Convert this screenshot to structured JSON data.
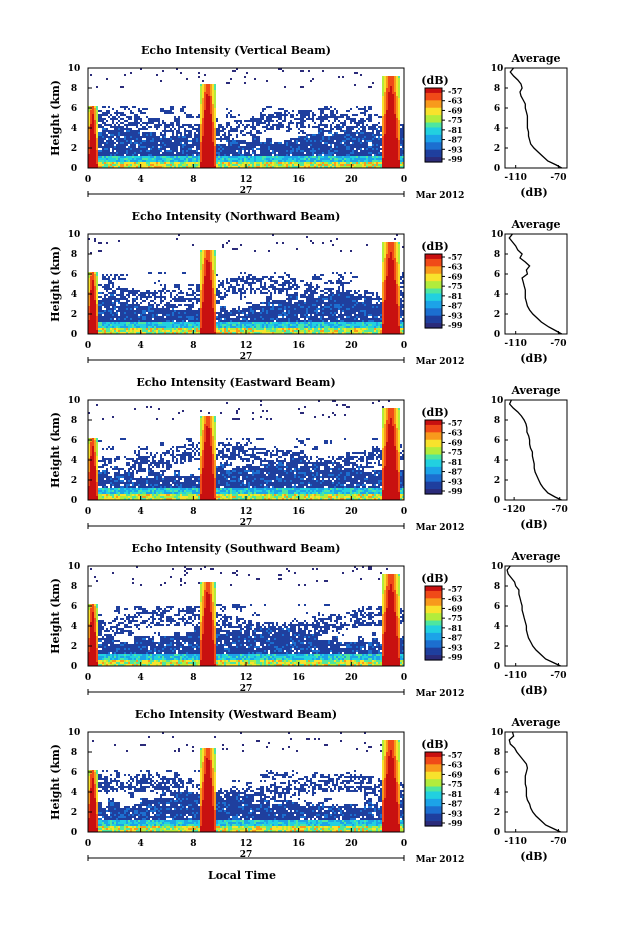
{
  "figure": {
    "x_label": "Local Time",
    "date_label": "Mar 2012",
    "day_label": "27",
    "y_label": "Height (km)",
    "avg_title": "Average",
    "avg_xlabel": "(dB)",
    "cb_unit": "(dB)",
    "cb_ticks": [
      "-57",
      "-63",
      "-69",
      "-75",
      "-81",
      "-87",
      "-93",
      "-99"
    ],
    "colors": {
      "scale": [
        "#2b2b7a",
        "#1f3f9e",
        "#1c6fd0",
        "#1ca3e8",
        "#22d0e0",
        "#4ee6a0",
        "#b2ec3c",
        "#f8e22c",
        "#f89a1c",
        "#f04a18",
        "#c81010"
      ]
    }
  },
  "chart_data": [
    {
      "type": "heatmap",
      "title": "Echo Intensity (Vertical Beam)",
      "ylabel": "Height (km)",
      "xlabel": "Local Time",
      "x_ticks": [
        "0",
        "4",
        "8",
        "12",
        "16",
        "20",
        "0"
      ],
      "y_ticks": [
        "0",
        "2",
        "4",
        "6",
        "8",
        "10"
      ],
      "xlim": [
        0,
        24
      ],
      "ylim": [
        0,
        10
      ],
      "colorbar": {
        "label": "(dB)",
        "range": [
          -99,
          -57
        ]
      },
      "profile": {
        "title": "Average",
        "xlabel": "(dB)",
        "x_ticks": [
          "-110",
          "-70"
        ],
        "xlim": [
          -120,
          -62
        ],
        "y": [
          0,
          0.3,
          0.7,
          1.2,
          1.6,
          2.0,
          2.4,
          2.8,
          3.2,
          3.6,
          4.0,
          4.4,
          4.8,
          5.2,
          5.6,
          6.0,
          6.4,
          6.8,
          7.2,
          7.6,
          8.0,
          8.4,
          8.8,
          9.2,
          9.6,
          10.0
        ],
        "values": [
          -67,
          -72,
          -80,
          -85,
          -89,
          -93,
          -96,
          -97,
          -98,
          -98,
          -99,
          -99,
          -99,
          -99,
          -100,
          -101,
          -101,
          -103,
          -105,
          -106,
          -104,
          -105,
          -108,
          -112,
          -115,
          -112
        ]
      }
    },
    {
      "type": "heatmap",
      "title": "Echo Intensity (Northward Beam)",
      "ylabel": "Height (km)",
      "xlabel": "Local Time",
      "x_ticks": [
        "0",
        "4",
        "8",
        "12",
        "16",
        "20",
        "0"
      ],
      "y_ticks": [
        "0",
        "2",
        "4",
        "6",
        "8",
        "10"
      ],
      "xlim": [
        0,
        24
      ],
      "ylim": [
        0,
        10
      ],
      "colorbar": {
        "label": "(dB)",
        "range": [
          -99,
          -57
        ]
      },
      "profile": {
        "title": "Average",
        "xlabel": "(dB)",
        "x_ticks": [
          "-110",
          "-70"
        ],
        "xlim": [
          -120,
          -62
        ],
        "y": [
          0,
          0.3,
          0.7,
          1.2,
          1.6,
          2.0,
          2.4,
          2.8,
          3.2,
          3.6,
          4.0,
          4.4,
          4.8,
          5.2,
          5.6,
          6.0,
          6.4,
          6.8,
          7.2,
          7.6,
          8.0,
          8.4,
          8.8,
          9.2,
          9.6,
          10.0
        ],
        "values": [
          -67,
          -72,
          -79,
          -86,
          -90,
          -94,
          -97,
          -99,
          -100,
          -101,
          -101,
          -101,
          -102,
          -103,
          -104,
          -99,
          -100,
          -97,
          -101,
          -106,
          -104,
          -108,
          -110,
          -113,
          -116,
          -113
        ]
      }
    },
    {
      "type": "heatmap",
      "title": "Echo Intensity (Eastward Beam)",
      "ylabel": "Height (km)",
      "xlabel": "Local Time",
      "x_ticks": [
        "0",
        "4",
        "8",
        "12",
        "16",
        "20",
        "0"
      ],
      "y_ticks": [
        "0",
        "2",
        "4",
        "6",
        "8",
        "10"
      ],
      "xlim": [
        0,
        24
      ],
      "ylim": [
        0,
        10
      ],
      "colorbar": {
        "label": "(dB)",
        "range": [
          -99,
          -57
        ]
      },
      "profile": {
        "title": "Average",
        "xlabel": "(dB)",
        "x_ticks": [
          "-120",
          "-70"
        ],
        "xlim": [
          -130,
          -62
        ],
        "y": [
          0,
          0.3,
          0.7,
          1.2,
          1.6,
          2.0,
          2.4,
          2.8,
          3.2,
          3.6,
          4.0,
          4.4,
          4.8,
          5.2,
          5.6,
          6.0,
          6.4,
          6.8,
          7.2,
          7.6,
          8.0,
          8.4,
          8.8,
          9.2,
          9.6,
          10.0
        ],
        "values": [
          -68,
          -75,
          -83,
          -88,
          -91,
          -93,
          -95,
          -97,
          -98,
          -98,
          -99,
          -100,
          -100,
          -102,
          -103,
          -103,
          -104,
          -106,
          -106,
          -107,
          -109,
          -112,
          -116,
          -121,
          -125,
          -123
        ]
      }
    },
    {
      "type": "heatmap",
      "title": "Echo Intensity (Southward Beam)",
      "ylabel": "Height (km)",
      "xlabel": "Local Time",
      "x_ticks": [
        "0",
        "4",
        "8",
        "12",
        "16",
        "20",
        "0"
      ],
      "y_ticks": [
        "0",
        "2",
        "4",
        "6",
        "8",
        "10"
      ],
      "xlim": [
        0,
        24
      ],
      "ylim": [
        0,
        10
      ],
      "colorbar": {
        "label": "(dB)",
        "range": [
          -99,
          -57
        ]
      },
      "profile": {
        "title": "Average",
        "xlabel": "(dB)",
        "x_ticks": [
          "-110",
          "-70"
        ],
        "xlim": [
          -120,
          -62
        ],
        "y": [
          0,
          0.3,
          0.7,
          1.2,
          1.6,
          2.0,
          2.4,
          2.8,
          3.2,
          3.6,
          4.0,
          4.4,
          4.8,
          5.2,
          5.6,
          6.0,
          6.4,
          6.8,
          7.2,
          7.6,
          8.0,
          8.4,
          8.8,
          9.2,
          9.6,
          10.0
        ],
        "values": [
          -68,
          -74,
          -82,
          -87,
          -91,
          -94,
          -96,
          -98,
          -99,
          -100,
          -100,
          -101,
          -102,
          -103,
          -104,
          -104,
          -105,
          -106,
          -107,
          -107,
          -110,
          -111,
          -114,
          -117,
          -118,
          -115
        ]
      }
    },
    {
      "type": "heatmap",
      "title": "Echo Intensity (Westward Beam)",
      "ylabel": "Height (km)",
      "xlabel": "Local Time",
      "x_ticks": [
        "0",
        "4",
        "8",
        "12",
        "16",
        "20",
        "0"
      ],
      "y_ticks": [
        "0",
        "2",
        "4",
        "6",
        "8",
        "10"
      ],
      "xlim": [
        0,
        24
      ],
      "ylim": [
        0,
        10
      ],
      "colorbar": {
        "label": "(dB)",
        "range": [
          -99,
          -57
        ]
      },
      "profile": {
        "title": "Average",
        "xlabel": "(dB)",
        "x_ticks": [
          "-110",
          "-70"
        ],
        "xlim": [
          -120,
          -62
        ],
        "y": [
          0,
          0.3,
          0.7,
          1.2,
          1.6,
          2.0,
          2.4,
          2.8,
          3.2,
          3.6,
          4.0,
          4.4,
          4.8,
          5.2,
          5.6,
          6.0,
          6.4,
          6.8,
          7.2,
          7.6,
          8.0,
          8.4,
          8.8,
          9.2,
          9.6,
          10.0
        ],
        "values": [
          -68,
          -74,
          -82,
          -87,
          -91,
          -94,
          -96,
          -97,
          -99,
          -100,
          -100,
          -100,
          -101,
          -101,
          -101,
          -100,
          -99,
          -100,
          -103,
          -106,
          -109,
          -111,
          -115,
          -116,
          -112,
          -113
        ]
      }
    }
  ]
}
